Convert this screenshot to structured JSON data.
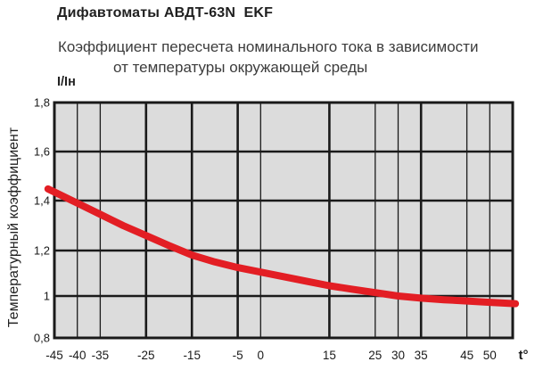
{
  "header": {
    "title": "Дифавтоматы АВДТ-63N  EKF",
    "subtitle_line1": "Коэффициент пересчета номинального тока в зависимости",
    "subtitle_line2": "от температуры окружающей среды"
  },
  "chart": {
    "y_axis_unit": "I/Iн",
    "y_axis_title": "Температурный коэффициент",
    "x_axis_unit": "t°"
  },
  "colors": {
    "curve": "#e31e24",
    "plot_background": "#dcdcdc",
    "grid": "#1a1a1a"
  },
  "chart_data": {
    "type": "line",
    "title": "Коэффициент пересчета номинального тока в зависимости от температуры окружающей среды",
    "xlabel": "t°",
    "ylabel": "Температурный коэффициент (I/Iн)",
    "xlim": [
      -45,
      55
    ],
    "ylim": [
      0.8,
      1.8
    ],
    "grid": true,
    "legend": false,
    "plot_bg": "#dcdcdc",
    "line_color": "#e31e24",
    "grid_color": "#1a1a1a",
    "x_ticks": [
      {
        "t": -45,
        "label": "-45",
        "major": true
      },
      {
        "t": -40,
        "label": "-40",
        "major": false
      },
      {
        "t": -35,
        "label": "-35",
        "major": false
      },
      {
        "t": -25,
        "label": "-25",
        "major": true
      },
      {
        "t": -15,
        "label": "-15",
        "major": true
      },
      {
        "t": -5,
        "label": "-5",
        "major": true
      },
      {
        "t": 0,
        "label": "0",
        "major": false
      },
      {
        "t": 15,
        "label": "15",
        "major": true
      },
      {
        "t": 25,
        "label": "25",
        "major": false
      },
      {
        "t": 30,
        "label": "30",
        "major": false
      },
      {
        "t": 35,
        "label": "35",
        "major": true
      },
      {
        "t": 45,
        "label": "45",
        "major": false
      },
      {
        "t": 50,
        "label": "50",
        "major": false
      }
    ],
    "y_ticks": {
      "values": [
        1.8,
        1.6,
        1.4,
        1.2,
        1.0,
        0.8
      ],
      "labels": [
        "1,8",
        "1,6",
        "1,4",
        "1,2",
        "1",
        "0,8"
      ]
    },
    "series": [
      {
        "name": "Температурный коэффициент",
        "x": [
          -45,
          -40,
          -35,
          -30,
          -25,
          -20,
          -15,
          -10,
          -5,
          0,
          5,
          10,
          15,
          20,
          25,
          30,
          35,
          40,
          45,
          50
        ],
        "y": [
          1.435,
          1.39,
          1.345,
          1.3,
          1.26,
          1.22,
          1.18,
          1.15,
          1.125,
          1.105,
          1.085,
          1.065,
          1.045,
          1.03,
          1.015,
          1.0,
          0.99,
          0.982,
          0.976,
          0.97
        ]
      }
    ]
  }
}
